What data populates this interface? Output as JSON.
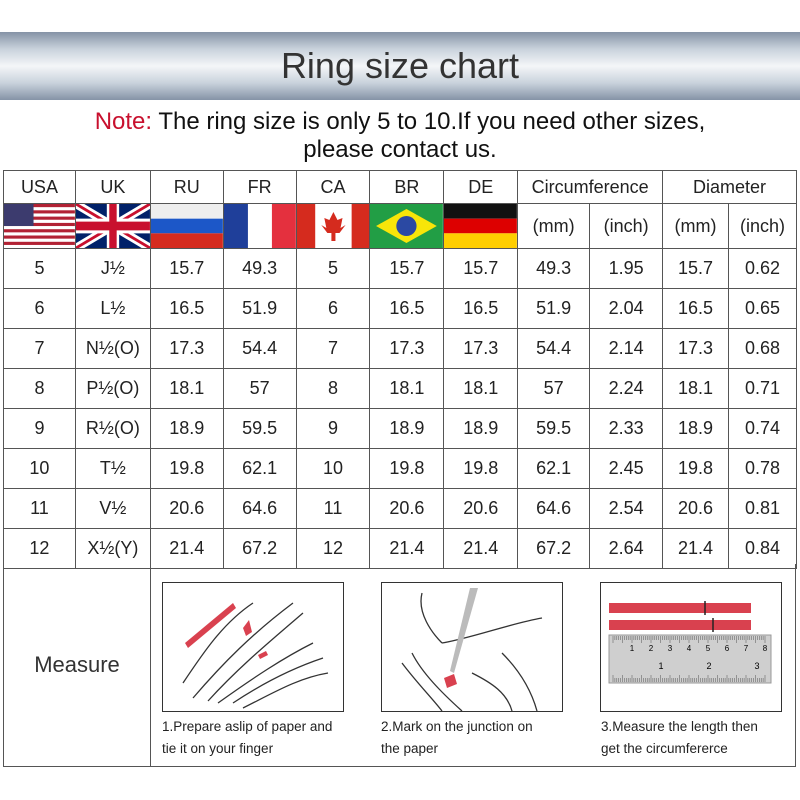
{
  "title": "Ring size chart",
  "note": {
    "label": "Note:",
    "text": " The ring size is only 5 to 10.If you need other sizes,",
    "line2": "please contact us."
  },
  "headers": [
    "USA",
    "UK",
    "RU",
    "FR",
    "CA",
    "BR",
    "DE",
    "Circumference",
    "Diameter"
  ],
  "subheaders": [
    "(mm)",
    "(inch)",
    "(mm)",
    "(inch)"
  ],
  "flags": [
    "usa-flag",
    "uk-flag",
    "russia-flag",
    "france-flag",
    "canada-flag",
    "brazil-flag",
    "germany-flag"
  ],
  "rows": [
    [
      "5",
      "J½",
      "15.7",
      "49.3",
      "5",
      "15.7",
      "15.7",
      "49.3",
      "1.95",
      "15.7",
      "0.62"
    ],
    [
      "6",
      "L½",
      "16.5",
      "51.9",
      "6",
      "16.5",
      "16.5",
      "51.9",
      "2.04",
      "16.5",
      "0.65"
    ],
    [
      "7",
      "N½(O)",
      "17.3",
      "54.4",
      "7",
      "17.3",
      "17.3",
      "54.4",
      "2.14",
      "17.3",
      "0.68"
    ],
    [
      "8",
      "P½(O)",
      "18.1",
      "57",
      "8",
      "18.1",
      "18.1",
      "57",
      "2.24",
      "18.1",
      "0.71"
    ],
    [
      "9",
      "R½(O)",
      "18.9",
      "59.5",
      "9",
      "18.9",
      "18.9",
      "59.5",
      "2.33",
      "18.9",
      "0.74"
    ],
    [
      "10",
      "T½",
      "19.8",
      "62.1",
      "10",
      "19.8",
      "19.8",
      "62.1",
      "2.45",
      "19.8",
      "0.78"
    ],
    [
      "11",
      "V½",
      "20.6",
      "64.6",
      "11",
      "20.6",
      "20.6",
      "64.6",
      "2.54",
      "20.6",
      "0.81"
    ],
    [
      "12",
      "X½(Y)",
      "21.4",
      "67.2",
      "12",
      "21.4",
      "21.4",
      "67.2",
      "2.64",
      "21.4",
      "0.84"
    ]
  ],
  "measure": {
    "label": "Measure",
    "steps": [
      {
        "line1": "1.Prepare aslip of paper and",
        "line2": "tie it on your finger"
      },
      {
        "line1": "2.Mark on the junction on",
        "line2": "the paper"
      },
      {
        "line1": "3.Measure the length then",
        "line2": "get the circumfererce"
      }
    ]
  },
  "ruler": {
    "cm_ticks": [
      "1",
      "2",
      "3",
      "4",
      "5",
      "6",
      "7",
      "8"
    ],
    "inch_ticks": [
      "1",
      "2",
      "3"
    ]
  },
  "colors": {
    "note_red": "#c8102e",
    "strip_red": "#d9414f"
  }
}
